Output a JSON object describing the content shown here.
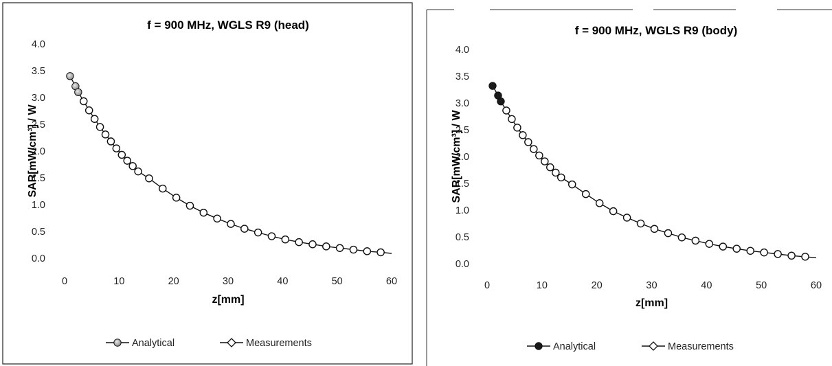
{
  "chart_data": [
    {
      "type": "line",
      "title": "f = 900 MHz, WGLS R9 (head)",
      "xlabel": "z[mm]",
      "ylabel": "SAR[mW/cm³] / W",
      "xlim": [
        0,
        60
      ],
      "ylim": [
        0.0,
        4.0
      ],
      "xticks": [
        "0",
        "10",
        "20",
        "30",
        "40",
        "50",
        "60"
      ],
      "yticks": [
        "0.0",
        "0.5",
        "1.0",
        "1.5",
        "2.0",
        "2.5",
        "3.0",
        "3.5",
        "4.0"
      ],
      "grid": false,
      "legend_position": "bottom",
      "series": [
        {
          "name": "Analytical",
          "style": "line-with-shaded-circle",
          "x": [
            1.0,
            2.0,
            2.5,
            3.5,
            4.5,
            5.5,
            6.5,
            7.5,
            8.5,
            9.5,
            10.5,
            11.5,
            12.5,
            13.5,
            15.5,
            18.0,
            20.5,
            23.0,
            25.5,
            28.0,
            30.5,
            33.0,
            35.5,
            38.0,
            40.5,
            43.0,
            45.5,
            48.0,
            50.5,
            53.0,
            55.5,
            58.0,
            60.0
          ],
          "y": [
            3.4,
            3.21,
            3.1,
            2.93,
            2.76,
            2.6,
            2.45,
            2.31,
            2.18,
            2.05,
            1.93,
            1.82,
            1.72,
            1.62,
            1.49,
            1.3,
            1.13,
            0.98,
            0.85,
            0.74,
            0.64,
            0.55,
            0.48,
            0.41,
            0.35,
            0.3,
            0.26,
            0.22,
            0.19,
            0.16,
            0.13,
            0.11,
            0.09
          ]
        },
        {
          "name": "Measurements",
          "style": "diamond",
          "x": [
            1.0,
            2.0,
            2.5,
            3.5,
            4.5,
            5.5,
            6.5,
            7.5,
            8.5,
            9.5,
            10.5,
            11.5,
            12.5,
            13.5,
            15.5,
            18.0,
            20.5,
            23.0,
            25.5,
            28.0,
            30.5,
            33.0,
            35.5,
            38.0,
            40.5,
            43.0,
            45.5,
            48.0,
            50.5,
            53.0,
            55.5,
            58.0
          ],
          "y": [
            3.4,
            3.21,
            3.1,
            2.93,
            2.76,
            2.6,
            2.45,
            2.31,
            2.18,
            2.05,
            1.93,
            1.82,
            1.72,
            1.62,
            1.49,
            1.3,
            1.13,
            0.98,
            0.85,
            0.74,
            0.64,
            0.55,
            0.48,
            0.41,
            0.35,
            0.3,
            0.26,
            0.22,
            0.19,
            0.16,
            0.13,
            0.11
          ]
        }
      ],
      "colors": {
        "line": "#111111",
        "analytical_marker_fill": "#8a8a8a",
        "measurement_marker_fill": "#ffffff"
      }
    },
    {
      "type": "line",
      "title": "f = 900 MHz, WGLS R9 (body)",
      "xlabel": "z[mm]",
      "ylabel": "SAR[mW/cm³] / W",
      "xlim": [
        0,
        60
      ],
      "ylim": [
        0.0,
        4.0
      ],
      "xticks": [
        "0",
        "10",
        "20",
        "30",
        "40",
        "50",
        "60"
      ],
      "yticks": [
        "0.0",
        "0.5",
        "1.0",
        "1.5",
        "2.0",
        "2.5",
        "3.0",
        "3.5",
        "4.0"
      ],
      "grid": false,
      "legend_position": "bottom",
      "series": [
        {
          "name": "Analytical",
          "style": "line-with-filled-circle",
          "x": [
            1.0,
            2.0,
            2.5,
            3.5,
            4.5,
            5.5,
            6.5,
            7.5,
            8.5,
            9.5,
            10.5,
            11.5,
            12.5,
            13.5,
            15.5,
            18.0,
            20.5,
            23.0,
            25.5,
            28.0,
            30.5,
            33.0,
            35.5,
            38.0,
            40.5,
            43.0,
            45.5,
            48.0,
            50.5,
            53.0,
            55.5,
            58.0,
            60.0
          ],
          "y": [
            3.32,
            3.14,
            3.03,
            2.86,
            2.7,
            2.54,
            2.4,
            2.27,
            2.14,
            2.02,
            1.91,
            1.8,
            1.7,
            1.61,
            1.48,
            1.3,
            1.13,
            0.98,
            0.86,
            0.75,
            0.65,
            0.57,
            0.49,
            0.43,
            0.37,
            0.32,
            0.28,
            0.24,
            0.21,
            0.18,
            0.15,
            0.13,
            0.11
          ]
        },
        {
          "name": "Measurements",
          "style": "diamond",
          "x": [
            1.0,
            2.0,
            2.5,
            3.5,
            4.5,
            5.5,
            6.5,
            7.5,
            8.5,
            9.5,
            10.5,
            11.5,
            12.5,
            13.5,
            15.5,
            18.0,
            20.5,
            23.0,
            25.5,
            28.0,
            30.5,
            33.0,
            35.5,
            38.0,
            40.5,
            43.0,
            45.5,
            48.0,
            50.5,
            53.0,
            55.5,
            58.0
          ],
          "y": [
            3.32,
            3.14,
            3.03,
            2.86,
            2.7,
            2.54,
            2.4,
            2.27,
            2.14,
            2.02,
            1.91,
            1.8,
            1.7,
            1.61,
            1.48,
            1.3,
            1.13,
            0.98,
            0.86,
            0.75,
            0.65,
            0.57,
            0.49,
            0.43,
            0.37,
            0.32,
            0.28,
            0.24,
            0.21,
            0.18,
            0.15,
            0.13
          ]
        }
      ],
      "colors": {
        "line": "#111111",
        "analytical_marker_fill": "#1a1a1a",
        "measurement_marker_fill": "#ffffff"
      }
    }
  ]
}
